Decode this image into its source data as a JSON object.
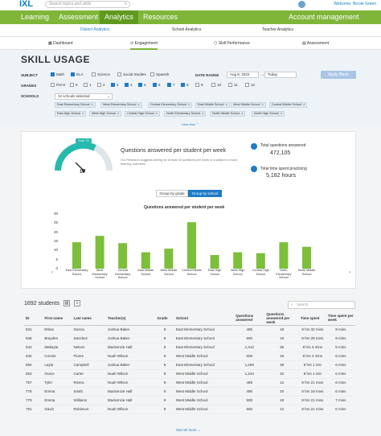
{
  "header": {
    "logo": "IXL",
    "search_placeholder": "Search topics and skills",
    "welcome": "Welcome, Nicole Green",
    "nav": [
      "Learning",
      "Assessment",
      "Analytics",
      "Resources"
    ],
    "account": "Account management"
  },
  "subnav": [
    "District Analytics",
    "School Analytics",
    "Teacher Analytics"
  ],
  "tabs": [
    "Dashboard",
    "Engagement",
    "Skill Performance",
    "Assessment"
  ],
  "page": {
    "title": "SKILL USAGE"
  },
  "filters": {
    "subject_label": "SUBJECT",
    "subjects": [
      {
        "label": "Math",
        "checked": true
      },
      {
        "label": "ELA",
        "checked": true
      },
      {
        "label": "Science",
        "checked": false
      },
      {
        "label": "Social Studies",
        "checked": false
      },
      {
        "label": "Spanish",
        "checked": false
      }
    ],
    "date_label": "DATE RANGE",
    "date_from": "Aug 8, 2022",
    "date_to": "Today",
    "apply": "Apply filters",
    "grades_label": "GRADES",
    "grades": [
      {
        "label": "Pre-K",
        "checked": false
      },
      {
        "label": "K",
        "checked": false
      },
      {
        "label": "1",
        "checked": false
      },
      {
        "label": "2",
        "checked": false
      },
      {
        "label": "3",
        "checked": true
      },
      {
        "label": "4",
        "checked": true
      },
      {
        "label": "5",
        "checked": true
      },
      {
        "label": "6",
        "checked": true
      },
      {
        "label": "7",
        "checked": true
      },
      {
        "label": "8",
        "checked": true
      },
      {
        "label": "9",
        "checked": false
      },
      {
        "label": "10",
        "checked": false
      },
      {
        "label": "11",
        "checked": false
      },
      {
        "label": "12",
        "checked": false
      }
    ],
    "schools_label": "SCHOOLS",
    "schools_select": "12 schools selected",
    "school_chips": [
      "East Elementary School",
      "West Elementary School",
      "Central Elementary School",
      "East Middle School",
      "West Middle School",
      "Central Middle School",
      "East High School",
      "West High School",
      "Central High School",
      "North Elementary School",
      "North Middle School",
      "North High School"
    ],
    "view_less": "View less ⌃"
  },
  "summary": {
    "gauge_value": "10",
    "gauge_badge": "Goal: 15",
    "question_text": "Questions answered per student per week",
    "question_sub": "Our Research suggests aiming for at least 15 questions per week in a subject to boost learning outcomes",
    "total_questions_label": "Total questions answered",
    "total_questions": "472,105",
    "total_time_label": "Total time spent practicing",
    "total_time": "5,182 hours",
    "group_by_grade": "Group by grade",
    "group_by_school": "Group by school"
  },
  "chart_data": {
    "type": "bar",
    "title": "Questions answered per student per week",
    "categories": [
      "East Elementary School",
      "West Elementary School",
      "Central Elementary School",
      "East Middle School",
      "West Middle School",
      "Central Middle School",
      "East High School",
      "West High School",
      "Central High School",
      "North Elementary School",
      "North Middle School"
    ],
    "values": [
      14.5,
      18,
      14,
      9,
      11,
      25.5,
      7.5,
      9,
      8.5,
      14.5,
      12
    ],
    "ylim": [
      0,
      30
    ],
    "yticks": [
      "30",
      "25",
      "20",
      "15",
      "10",
      "5",
      "0"
    ],
    "color": "#7cbf3a"
  },
  "table": {
    "count_label": "1692 students",
    "search_placeholder": "Search",
    "headers": [
      "ID",
      "First name",
      "Last name",
      "Teacher(s)",
      "Grade",
      "School",
      "Questions answered",
      "Questions answered per week",
      "Time spent",
      "Time spent per week"
    ],
    "rows": [
      [
        "531",
        "Ethan",
        "Garcia",
        "Joshua Baker",
        "8",
        "East Elementary School",
        "495",
        "18",
        "8 hrs 32 mins",
        "9 mins"
      ],
      [
        "538",
        "Brayden",
        "Sanchez",
        "Joshua Baker",
        "8",
        "East Elementary School",
        "500",
        "19",
        "8 hrs 29 mins",
        "9 mins"
      ],
      [
        "542",
        "Makayla",
        "Nelson",
        "Mackenzie Hall",
        "8",
        "East Elementary School",
        "1,312",
        "36",
        "8 hrs 3 mins",
        "5 mins"
      ],
      [
        "545",
        "Connie",
        "Flores",
        "Noah Wilson",
        "8",
        "West Middle School",
        "509",
        "18",
        "8 hrs 2 mins",
        "6 mins"
      ],
      [
        "550",
        "Layla",
        "Campbell",
        "Joshua Baker",
        "8",
        "East Elementary School",
        "1,269",
        "39",
        "8 hrs 1 min",
        "6 mins"
      ],
      [
        "553",
        "Grace",
        "Carter",
        "Noah Wilson",
        "8",
        "West Middle School",
        "1,244",
        "32",
        "8 hrs 1 min",
        "6 mins"
      ],
      [
        "757",
        "Tyler",
        "Rivera",
        "Noah Wilson",
        "8",
        "West Middle School",
        "489",
        "12",
        "8 hrs 21 mins",
        "6 mins"
      ],
      [
        "778",
        "Emma",
        "Smith",
        "Mackenzie Hall",
        "8",
        "West Middle School",
        "495",
        "20",
        "8 hrs 18 mins",
        "6 mins"
      ],
      [
        "779",
        "Emma",
        "Williams",
        "Mackenzie Hall",
        "8",
        "West Middle School",
        "500",
        "18",
        "8 hrs 21 mins",
        "7 mins"
      ],
      [
        "791",
        "Gavin",
        "Robinson",
        "Noah Wilson",
        "8",
        "West Middle School",
        "500",
        "12",
        "8 hrs 21 mins",
        "6 mins"
      ]
    ],
    "see_more": "See 50 more ⌄"
  }
}
